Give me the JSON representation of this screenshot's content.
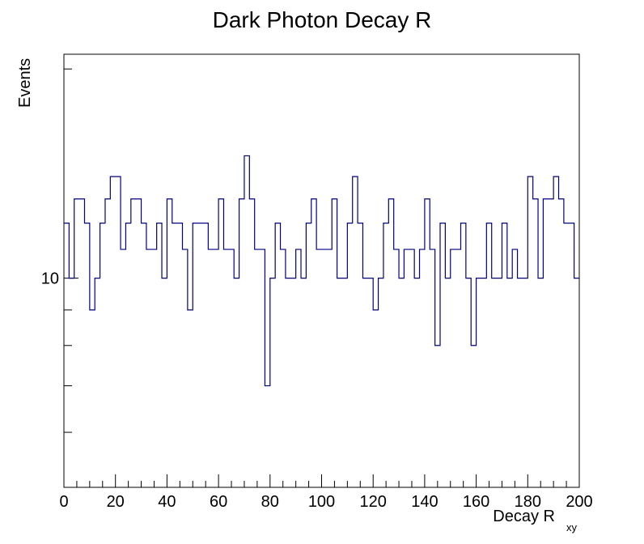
{
  "chart_data": {
    "type": "histogram",
    "title": "Dark Photon Decay R",
    "ylabel": "Events",
    "xlabel_main": "Decay R",
    "xlabel_sub": "xy",
    "xlim": [
      0,
      200
    ],
    "ylim": [
      5,
      21
    ],
    "yscale": "log",
    "bin_width": 2,
    "line_color": "#000080",
    "x_ticks": [
      "0",
      "20",
      "40",
      "60",
      "80",
      "100",
      "120",
      "140",
      "160",
      "180",
      "200"
    ],
    "x_tick_values": [
      0,
      20,
      40,
      60,
      80,
      100,
      120,
      140,
      160,
      180,
      200
    ],
    "y_tick_labels": [
      {
        "value": 10,
        "label": "10"
      }
    ],
    "y_ticks_major": [
      10
    ],
    "y_ticks_minor": [
      6,
      7,
      8,
      9,
      20
    ],
    "values": [
      12,
      10,
      13,
      13,
      12,
      9,
      10,
      12,
      13,
      14,
      14,
      11,
      12,
      13,
      13,
      12,
      11,
      11,
      12,
      10,
      13,
      12,
      12,
      11,
      9,
      12,
      12,
      12,
      11,
      11,
      13,
      11,
      11,
      10,
      13,
      15,
      13,
      11,
      11,
      7,
      10,
      12,
      11,
      10,
      10,
      11,
      10,
      12,
      13,
      11,
      11,
      11,
      13,
      10,
      10,
      12,
      14,
      12,
      10,
      10,
      9,
      10,
      12,
      13,
      11,
      10,
      11,
      11,
      10,
      11,
      13,
      11,
      8,
      12,
      10,
      11,
      11,
      12,
      10,
      8,
      10,
      10,
      12,
      10,
      10,
      12,
      10,
      11,
      10,
      10,
      14,
      13,
      10,
      13,
      13,
      14,
      13,
      12,
      12,
      10
    ]
  }
}
